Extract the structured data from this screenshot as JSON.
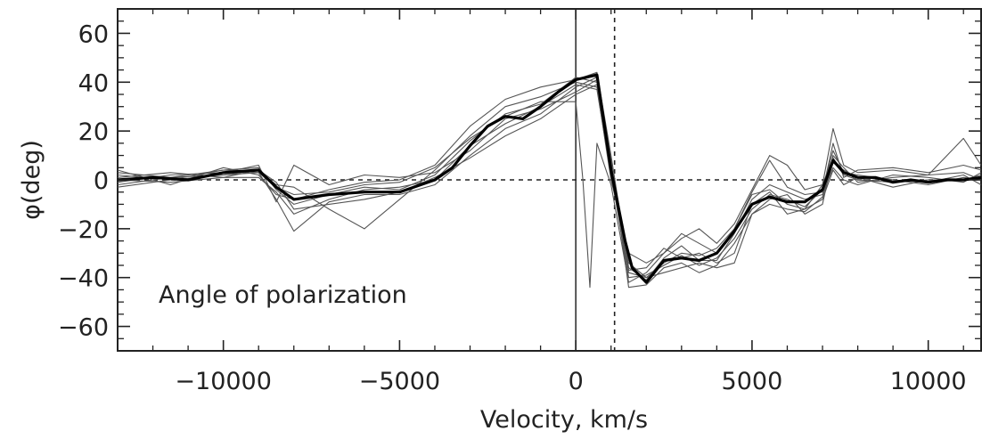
{
  "chart_data": {
    "type": "line",
    "title": "",
    "xlabel": "Velocity, km/s",
    "ylabel": "φ(deg)",
    "xlim": [
      -13000,
      11500
    ],
    "ylim": [
      -70,
      70
    ],
    "xticks": [
      -10000,
      -5000,
      0,
      5000,
      10000
    ],
    "xtick_labels": [
      "−10000",
      "−5000",
      "0",
      "5000",
      "10000"
    ],
    "yticks": [
      -60,
      -40,
      -20,
      0,
      20,
      40,
      60
    ],
    "ytick_labels": [
      "−60",
      "−40",
      "−20",
      "0",
      "20",
      "40",
      "60"
    ],
    "annotation": "Angle of polarization",
    "reference_lines": {
      "zero_velocity": 0,
      "dashed_vertical_velocity": 1100,
      "dashed_horizontal_value": 0
    },
    "grid": false,
    "legend": "none",
    "colors": {
      "mean": "#000000",
      "individual": "#555555",
      "axes": "#222222"
    },
    "mean_series": {
      "x": [
        -13000,
        -12000,
        -11000,
        -10000,
        -9000,
        -8500,
        -8000,
        -7000,
        -6000,
        -5000,
        -4000,
        -3500,
        -3000,
        -2500,
        -2000,
        -1500,
        -1000,
        -500,
        0,
        600,
        1000,
        1400,
        1600,
        2000,
        2500,
        3000,
        3500,
        4000,
        4500,
        5000,
        5500,
        6000,
        6500,
        7000,
        7300,
        7600,
        8000,
        8500,
        9000,
        9500,
        10000,
        10500,
        11000,
        11500
      ],
      "y": [
        0,
        1,
        0,
        3,
        4,
        -3,
        -8,
        -6,
        -5,
        -5,
        0,
        5,
        14,
        22,
        26,
        25,
        30,
        36,
        41,
        43,
        4,
        -25,
        -36,
        -42,
        -33,
        -32,
        -33,
        -30,
        -21,
        -10,
        -7,
        -9,
        -9,
        -4,
        8,
        3,
        1,
        1,
        -1,
        0,
        -1,
        0,
        0,
        1
      ]
    },
    "individual_series": [
      {
        "x": [
          -13000,
          -11500,
          -10000,
          -9000,
          -8500,
          -8000,
          -7000,
          -6000,
          -5000,
          -4000,
          -3000,
          -2000,
          -1000,
          0,
          600,
          1000,
          1500,
          2000,
          2500,
          3000,
          3500,
          4000,
          4500,
          5000,
          5500,
          6000,
          6500,
          7000,
          7300,
          7600,
          8000,
          9000,
          10000,
          11000,
          11500
        ],
        "y": [
          2,
          0,
          4,
          5,
          -4,
          -10,
          -6,
          -3,
          -4,
          2,
          16,
          27,
          31,
          42,
          40,
          5,
          -38,
          -40,
          -34,
          -30,
          -31,
          -28,
          -20,
          -6,
          -4,
          -10,
          -12,
          -2,
          9,
          2,
          0,
          -1,
          0,
          0,
          2
        ]
      },
      {
        "x": [
          -13000,
          -11500,
          -10000,
          -9000,
          -8500,
          -8000,
          -7000,
          -6000,
          -5000,
          -4000,
          -3000,
          -2000,
          -1000,
          0,
          600,
          1000,
          1500,
          2000,
          2500,
          3000,
          3500,
          4000,
          4500,
          5000,
          5500,
          6000,
          6500,
          7000,
          7300,
          7600,
          8000,
          9000,
          10000,
          11000,
          11500
        ],
        "y": [
          -2,
          1,
          2,
          3,
          -8,
          -21,
          -9,
          -6,
          -6,
          -2,
          10,
          21,
          27,
          38,
          42,
          8,
          -44,
          -43,
          -36,
          -34,
          -38,
          -35,
          -26,
          -14,
          -10,
          -12,
          -13,
          -7,
          7,
          4,
          1,
          0,
          -2,
          1,
          0
        ]
      },
      {
        "x": [
          -13000,
          -11500,
          -10000,
          -9000,
          -8500,
          -8000,
          -7000,
          -6000,
          -5000,
          -4000,
          -3000,
          -2000,
          -1000,
          0,
          600,
          1000,
          1500,
          2000,
          2500,
          3000,
          3500,
          4000,
          4500,
          5000,
          5500,
          6000,
          6500,
          7000,
          7300,
          7600,
          8000,
          9000,
          10000,
          11000,
          11500
        ],
        "y": [
          1,
          3,
          1,
          4,
          -2,
          -3,
          -12,
          -20,
          -8,
          4,
          18,
          30,
          34,
          40,
          38,
          0,
          -30,
          -34,
          -30,
          -24,
          -20,
          -26,
          -18,
          -4,
          10,
          6,
          -4,
          -2,
          21,
          6,
          3,
          4,
          2,
          17,
          6
        ]
      },
      {
        "x": [
          -13000,
          -11500,
          -10000,
          -9000,
          -8500,
          -8000,
          -7000,
          -6000,
          -5000,
          -4000,
          -3000,
          -2000,
          -1000,
          0,
          600,
          1000,
          1500,
          2000,
          2500,
          3000,
          3500,
          4000,
          4500,
          5000,
          5500,
          6000,
          6500,
          7000,
          7300,
          7600,
          8000,
          9000,
          10000,
          11000,
          11500
        ],
        "y": [
          4,
          -2,
          5,
          2,
          -6,
          -8,
          -4,
          -1,
          0,
          6,
          22,
          33,
          38,
          41,
          44,
          10,
          -36,
          -41,
          -32,
          -27,
          -33,
          -33,
          -22,
          -8,
          -2,
          -5,
          -8,
          -6,
          5,
          0,
          -2,
          2,
          1,
          -1,
          3
        ]
      },
      {
        "x": [
          -13000,
          -11500,
          -10000,
          -9000,
          -8500,
          -8000,
          -7000,
          -6000,
          -5000,
          -4000,
          -3000,
          -2000,
          -1000,
          0,
          600,
          1000,
          1500,
          2000,
          2500,
          3000,
          3500,
          4000,
          4500,
          5000,
          5500,
          6000,
          6500,
          7000,
          7300,
          7600,
          8000,
          9000,
          10000,
          11000,
          11500
        ],
        "y": [
          -1,
          2,
          3,
          6,
          -9,
          6,
          -2,
          2,
          1,
          3,
          12,
          25,
          29,
          36,
          41,
          3,
          -40,
          -39,
          -35,
          -31,
          -35,
          -32,
          -24,
          -12,
          -6,
          -8,
          -11,
          -4,
          12,
          3,
          2,
          0,
          -1,
          2,
          -2
        ]
      },
      {
        "x": [
          -13000,
          -11500,
          -10000,
          -9000,
          -8500,
          -8000,
          -7000,
          -6000,
          -5000,
          -4000,
          -3000,
          -2000,
          -1000,
          0,
          600,
          1000,
          1500,
          2000,
          2500,
          3000,
          3500,
          4000,
          4500,
          5000,
          5500,
          6000,
          6500,
          7000,
          7300,
          7600,
          8000,
          9000,
          10000,
          11000,
          11500
        ],
        "y": [
          0,
          -1,
          1,
          1,
          -5,
          -14,
          -8,
          -4,
          -3,
          0,
          14,
          23,
          30,
          39,
          37,
          2,
          -37,
          -36,
          -28,
          -32,
          -30,
          -34,
          -30,
          -10,
          -5,
          -14,
          -12,
          -8,
          4,
          -2,
          1,
          -3,
          0,
          0,
          1
        ]
      },
      {
        "x": [
          -13000,
          -11500,
          -10000,
          -9000,
          -8500,
          -8000,
          -7000,
          -6000,
          -5000,
          -4000,
          -3000,
          -2000,
          -1000,
          0,
          200,
          400,
          600,
          1000,
          1500,
          2000,
          2500,
          3000,
          3500,
          4000,
          4500,
          5000,
          5500,
          6000,
          6500,
          7000,
          7300,
          7600,
          8000,
          9000,
          10000,
          11000,
          11500
        ],
        "y": [
          3,
          1,
          4,
          3,
          -3,
          -6,
          -5,
          -2,
          -1,
          5,
          17,
          26,
          32,
          32,
          0,
          -44,
          15,
          -2,
          -42,
          -38,
          -30,
          -22,
          -26,
          -30,
          -20,
          -5,
          8,
          -3,
          -6,
          -5,
          15,
          1,
          4,
          5,
          3,
          6,
          4
        ]
      },
      {
        "x": [
          -13000,
          -11500,
          -10000,
          -9000,
          -8500,
          -8000,
          -7000,
          -6000,
          -5000,
          -4000,
          -3000,
          -2000,
          -1000,
          0,
          600,
          1000,
          1500,
          2000,
          2500,
          3000,
          3500,
          4000,
          4500,
          5000,
          5500,
          6000,
          6500,
          7000,
          7300,
          7600,
          8000,
          9000,
          10000,
          11000,
          11500
        ],
        "y": [
          -3,
          0,
          2,
          4,
          -1,
          -12,
          -10,
          -8,
          -5,
          1,
          9,
          18,
          25,
          35,
          39,
          6,
          -34,
          -40,
          -38,
          -36,
          -34,
          -36,
          -34,
          -14,
          -8,
          -6,
          -14,
          -10,
          10,
          5,
          -1,
          1,
          2,
          3,
          0
        ]
      }
    ]
  }
}
